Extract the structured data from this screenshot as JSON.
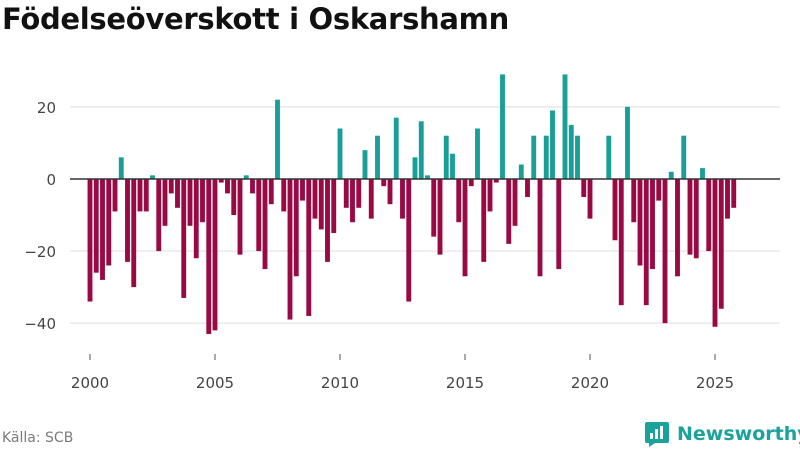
{
  "title": "Födelseöverskott i Oskarshamn",
  "source": "Källa: SCB",
  "brand": {
    "name": "Newsworthy",
    "icon": "newsworthy-logo-icon"
  },
  "colors": {
    "positive": "#1a9e98",
    "negative": "#990a45",
    "grid": "#dddddd",
    "zero": "#333333",
    "text": "#444444"
  },
  "chart_data": {
    "type": "bar",
    "title": "Födelseöverskott i Oskarshamn",
    "xlabel": "",
    "ylabel": "",
    "ylim": [
      -48,
      33
    ],
    "yticks": [
      20,
      0,
      -20,
      -40
    ],
    "ytick_labels": [
      "20",
      "0",
      "−20",
      "−40"
    ],
    "xticks": [
      2000,
      2005,
      2010,
      2015,
      2020,
      2025
    ],
    "xtick_labels": [
      "2000",
      "2005",
      "2010",
      "2015",
      "2020",
      "2025"
    ],
    "frequency": "quarterly",
    "start": 2000.0,
    "values": [
      -34,
      -26,
      -28,
      -24,
      -9,
      6,
      -23,
      -30,
      -9,
      -9,
      1,
      -20,
      -13,
      -4,
      -8,
      -33,
      -13,
      -22,
      -12,
      -43,
      -42,
      -1,
      -4,
      -10,
      -21,
      1,
      -4,
      -20,
      -25,
      -7,
      22,
      -9,
      -39,
      -27,
      -6,
      -38,
      -11,
      -14,
      -23,
      -15,
      14,
      -8,
      -12,
      -8,
      8,
      -11,
      12,
      -2,
      -7,
      17,
      -11,
      -34,
      6,
      16,
      1,
      -16,
      -21,
      12,
      7,
      -12,
      -27,
      -2,
      14,
      -23,
      -9,
      -1,
      29,
      -18,
      -13,
      4,
      -5,
      12,
      -27,
      12,
      19,
      -25,
      29,
      15,
      12,
      -5,
      -11,
      0,
      0,
      12,
      -17,
      -35,
      20,
      -12,
      -24,
      -35,
      -25,
      -6,
      -40,
      2,
      -27,
      12,
      -21,
      -22,
      3,
      -20,
      -41,
      -36,
      -11,
      -8
    ]
  }
}
